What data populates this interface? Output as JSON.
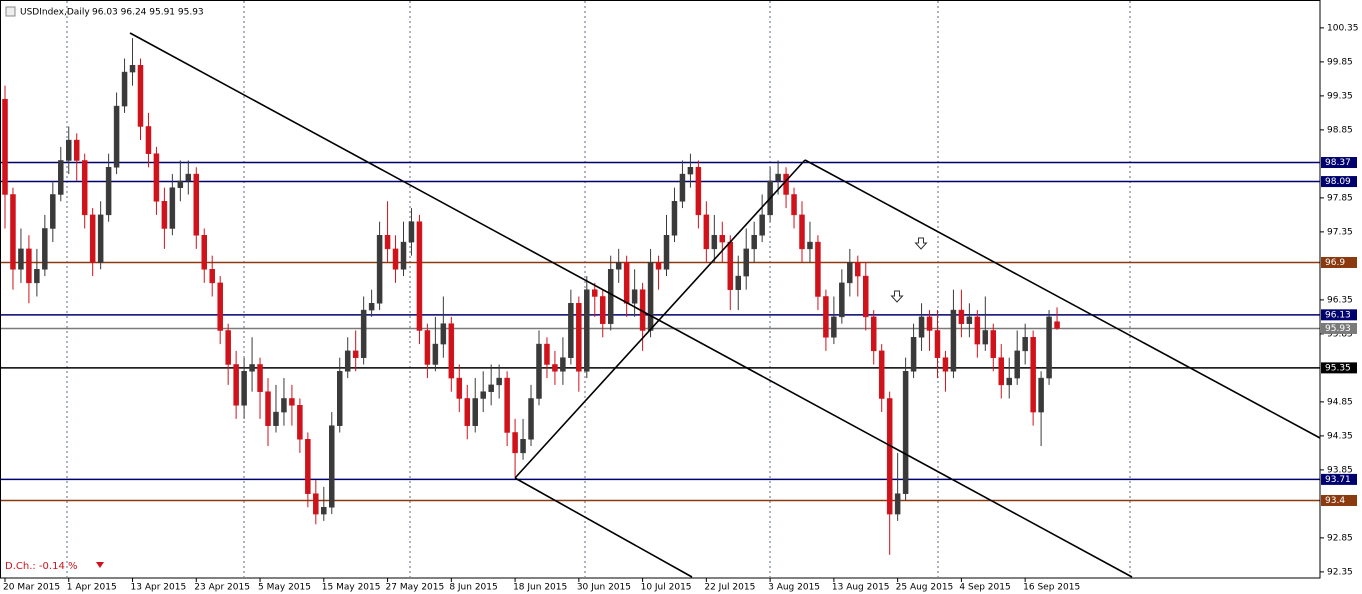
{
  "chart_data": {
    "type": "candlestick",
    "title": "USDIndex,Daily",
    "header_values": "96.03 96.24 95.91 95.93",
    "daily_change_label": "D.Ch.: -0.14 %",
    "bull_color": "#3a3a3a",
    "bear_color": "#d0121b",
    "ylim": [
      92.26,
      100.76
    ],
    "yticks": [
      100.35,
      99.85,
      99.35,
      98.85,
      97.85,
      97.35,
      96.35,
      95.85,
      94.85,
      94.35,
      93.85,
      92.85,
      92.35
    ],
    "levels": [
      {
        "value": 98.37,
        "color": "#00006e"
      },
      {
        "value": 98.09,
        "color": "#00006e"
      },
      {
        "value": 96.9,
        "color": "#8b3a0f"
      },
      {
        "value": 96.13,
        "color": "#00006e"
      },
      {
        "value": 95.93,
        "color": "#7a7a7a"
      },
      {
        "value": 95.35,
        "color": "#000000"
      },
      {
        "value": 93.71,
        "color": "#00006e"
      },
      {
        "value": 93.4,
        "color": "#8b3a0f"
      }
    ],
    "categories": [
      "20 Mar 2015",
      null,
      null,
      null,
      null,
      null,
      null,
      null,
      "1 Apr 2015",
      null,
      null,
      null,
      null,
      null,
      null,
      null,
      "13 Apr 2015",
      null,
      null,
      null,
      null,
      null,
      null,
      null,
      "23 Apr 2015",
      null,
      null,
      null,
      null,
      null,
      null,
      null,
      "5 May 2015",
      null,
      null,
      null,
      null,
      null,
      null,
      null,
      "15 May 2015",
      null,
      null,
      null,
      null,
      null,
      null,
      null,
      "27 May 2015",
      null,
      null,
      null,
      null,
      null,
      null,
      null,
      "8 Jun 2015",
      null,
      null,
      null,
      null,
      null,
      null,
      null,
      "18 Jun 2015",
      null,
      null,
      null,
      null,
      null,
      null,
      null,
      "30 Jun 2015",
      null,
      null,
      null,
      null,
      null,
      null,
      null,
      "10 Jul 2015",
      null,
      null,
      null,
      null,
      null,
      null,
      null,
      "22 Jul 2015",
      null,
      null,
      null,
      null,
      null,
      null,
      null,
      "3 Aug 2015",
      null,
      null,
      null,
      null,
      null,
      null,
      null,
      "13 Aug 2015",
      null,
      null,
      null,
      null,
      null,
      null,
      null,
      "25 Aug 2015",
      null,
      null,
      null,
      null,
      null,
      null,
      null,
      "4 Sep 2015",
      null,
      null,
      null,
      null,
      null,
      null,
      null,
      "16 Sep 2015",
      null,
      null,
      null,
      null
    ],
    "open": [
      99.3,
      97.9,
      96.8,
      97.1,
      96.6,
      96.8,
      97.4,
      97.9,
      98.4,
      98.7,
      98.4,
      97.6,
      96.9,
      97.6,
      98.3,
      99.2,
      99.7,
      99.8,
      98.9,
      98.5,
      97.8,
      97.4,
      98.0,
      98.1,
      98.2,
      97.3,
      96.8,
      96.6,
      95.9,
      95.4,
      94.8,
      95.3,
      95.4,
      95.0,
      94.5,
      94.7,
      94.9,
      94.8,
      94.3,
      93.5,
      93.2,
      93.3,
      94.5,
      95.3,
      95.6,
      95.5,
      96.2,
      96.3,
      97.3,
      97.1,
      96.8,
      97.2,
      97.5,
      95.9,
      95.4,
      95.7,
      96.0,
      95.2,
      94.9,
      94.5,
      94.9,
      95.0,
      95.1,
      95.2,
      94.4,
      94.1,
      94.3,
      94.9,
      95.7,
      95.4,
      95.3,
      95.5,
      96.3,
      95.3,
      96.5,
      96.4,
      96.0,
      96.8,
      96.9,
      96.3,
      96.5,
      95.9,
      96.9,
      96.8,
      97.3,
      97.8,
      98.2,
      98.3,
      97.6,
      97.1,
      97.3,
      97.2,
      96.5,
      96.7,
      97.1,
      97.3,
      97.6,
      98.1,
      98.2,
      97.9,
      97.6,
      97.1,
      97.2,
      96.4,
      95.8,
      96.1,
      96.6,
      96.9,
      96.7,
      96.1,
      95.6,
      94.9,
      93.2,
      93.5,
      95.3,
      95.8,
      96.1,
      95.9,
      95.5,
      95.3,
      96.2,
      96.0,
      96.1,
      95.7,
      95.9,
      95.5,
      95.1,
      95.2,
      95.6,
      95.8,
      94.7,
      95.2,
      96.03
    ],
    "high": [
      99.5,
      98.0,
      97.4,
      97.3,
      97.1,
      97.6,
      98.1,
      98.6,
      98.9,
      98.8,
      98.5,
      97.7,
      97.8,
      98.5,
      99.4,
      99.9,
      100.2,
      99.9,
      99.1,
      98.6,
      98.0,
      98.2,
      98.4,
      98.4,
      98.3,
      97.4,
      97.0,
      96.7,
      96.0,
      95.6,
      95.5,
      95.8,
      95.5,
      95.2,
      95.1,
      95.2,
      95.1,
      94.9,
      94.4,
      93.7,
      93.6,
      94.7,
      95.5,
      95.8,
      95.9,
      96.4,
      96.5,
      97.5,
      97.8,
      97.3,
      97.5,
      97.7,
      97.6,
      96.0,
      96.1,
      96.4,
      96.1,
      95.4,
      95.1,
      95.2,
      95.3,
      95.4,
      95.4,
      95.3,
      94.6,
      94.6,
      95.1,
      95.9,
      95.8,
      95.6,
      95.8,
      96.5,
      96.4,
      96.7,
      96.6,
      96.5,
      97.0,
      97.1,
      97.0,
      96.8,
      96.6,
      97.1,
      97.0,
      97.6,
      98.0,
      98.4,
      98.5,
      98.4,
      97.8,
      97.6,
      97.5,
      97.3,
      97.0,
      97.4,
      97.5,
      97.9,
      98.3,
      98.4,
      98.3,
      98.0,
      97.8,
      97.5,
      97.3,
      96.5,
      96.4,
      96.8,
      97.1,
      97.0,
      96.9,
      96.2,
      95.7,
      95.0,
      94.1,
      95.5,
      96.0,
      96.3,
      96.2,
      96.2,
      95.6,
      96.5,
      96.5,
      96.3,
      96.2,
      96.4,
      96.0,
      95.7,
      95.5,
      95.9,
      96.0,
      95.9,
      95.3,
      96.2,
      96.24
    ],
    "low": [
      97.4,
      96.5,
      96.6,
      96.3,
      96.4,
      96.7,
      97.2,
      97.8,
      98.2,
      98.1,
      97.4,
      96.7,
      96.8,
      97.5,
      98.2,
      99.1,
      99.5,
      98.7,
      98.3,
      97.6,
      97.1,
      97.3,
      97.8,
      97.9,
      97.1,
      96.6,
      96.4,
      95.7,
      95.1,
      94.6,
      94.6,
      95.0,
      94.6,
      94.2,
      94.4,
      94.5,
      94.5,
      94.1,
      93.3,
      93.05,
      93.1,
      93.2,
      94.4,
      95.2,
      95.3,
      95.4,
      96.1,
      96.2,
      96.9,
      96.6,
      96.7,
      97.0,
      95.7,
      95.2,
      95.3,
      95.5,
      95.0,
      94.7,
      94.3,
      94.4,
      94.7,
      94.8,
      94.9,
      94.2,
      93.75,
      94.0,
      94.2,
      94.8,
      95.2,
      95.1,
      95.1,
      95.4,
      95.0,
      95.2,
      96.1,
      95.8,
      95.9,
      96.6,
      96.1,
      96.1,
      95.6,
      95.8,
      96.5,
      96.7,
      97.2,
      97.7,
      98.0,
      97.4,
      96.9,
      96.9,
      96.9,
      96.2,
      96.2,
      96.5,
      96.9,
      97.2,
      97.5,
      97.9,
      97.7,
      97.4,
      96.9,
      96.9,
      96.2,
      95.6,
      95.7,
      96.0,
      96.4,
      96.4,
      95.9,
      95.4,
      94.7,
      92.6,
      93.1,
      93.4,
      95.2,
      95.6,
      95.6,
      95.2,
      95.0,
      95.2,
      95.8,
      95.8,
      95.5,
      95.6,
      95.3,
      94.9,
      94.9,
      95.1,
      95.4,
      94.5,
      94.2,
      95.1,
      95.91
    ],
    "close": [
      97.9,
      96.8,
      97.1,
      96.6,
      96.8,
      97.4,
      97.9,
      98.4,
      98.7,
      98.4,
      97.6,
      96.9,
      97.6,
      98.3,
      99.2,
      99.7,
      99.8,
      98.9,
      98.5,
      97.8,
      97.4,
      98.0,
      98.1,
      98.2,
      97.3,
      96.8,
      96.6,
      95.9,
      95.4,
      94.8,
      95.3,
      95.4,
      95.0,
      94.5,
      94.7,
      94.9,
      94.8,
      94.3,
      93.5,
      93.2,
      93.3,
      94.5,
      95.3,
      95.6,
      95.5,
      96.2,
      96.3,
      97.3,
      97.1,
      96.8,
      97.2,
      97.5,
      95.9,
      95.4,
      95.7,
      96.0,
      95.2,
      94.9,
      94.5,
      94.9,
      95.0,
      95.1,
      95.2,
      94.4,
      94.1,
      94.3,
      94.9,
      95.7,
      95.4,
      95.3,
      95.5,
      96.3,
      95.3,
      96.5,
      96.4,
      96.0,
      96.8,
      96.9,
      96.3,
      96.5,
      95.9,
      96.9,
      96.8,
      97.3,
      97.8,
      98.2,
      98.3,
      97.6,
      97.1,
      97.3,
      97.2,
      96.5,
      96.7,
      97.1,
      97.3,
      97.6,
      98.1,
      98.2,
      97.9,
      97.6,
      97.1,
      97.2,
      96.4,
      95.8,
      96.1,
      96.6,
      96.9,
      96.7,
      96.1,
      95.6,
      94.9,
      93.2,
      93.5,
      95.3,
      95.8,
      96.1,
      95.9,
      95.5,
      95.3,
      96.2,
      96.0,
      96.1,
      95.7,
      95.9,
      95.5,
      95.1,
      95.2,
      95.6,
      95.8,
      94.7,
      95.2,
      96.1,
      95.93
    ]
  }
}
